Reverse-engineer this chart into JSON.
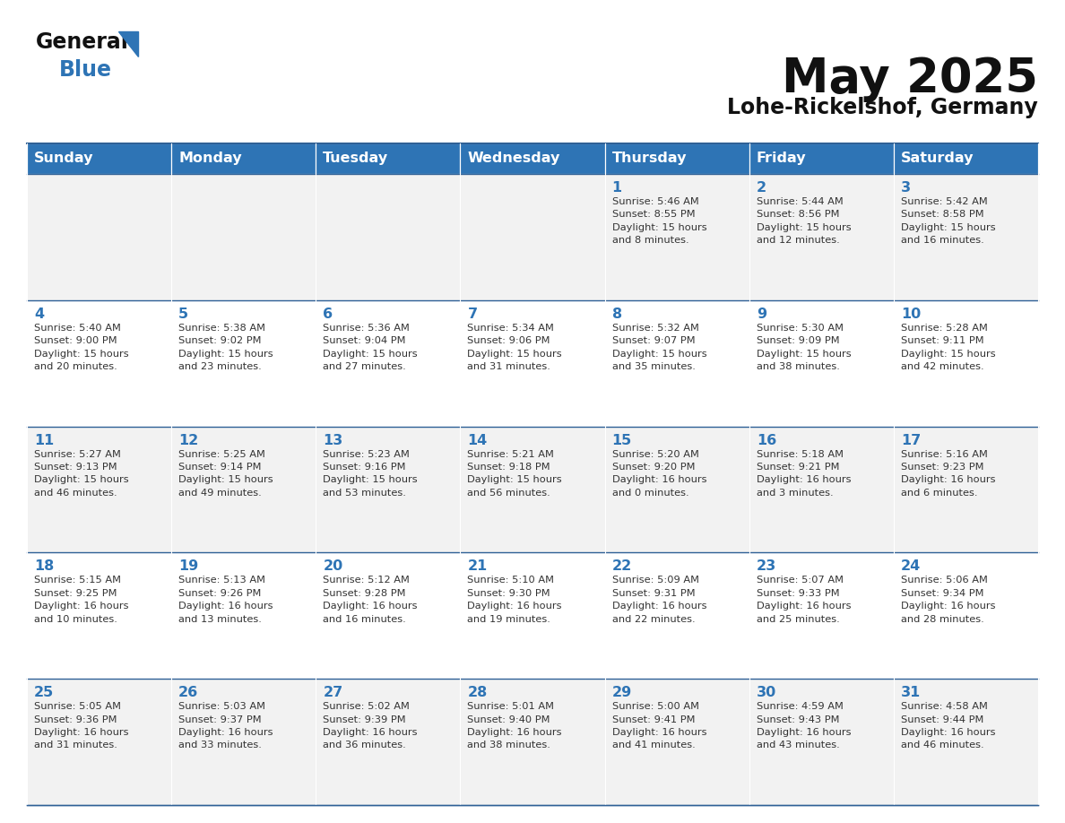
{
  "title": "May 2025",
  "subtitle": "Lohe-Rickelshof, Germany",
  "header_color": "#2E74B5",
  "header_text_color": "#FFFFFF",
  "background_color": "#FFFFFF",
  "cell_bg_even": "#F2F2F2",
  "cell_bg_odd": "#FFFFFF",
  "border_color": "#2E6096",
  "day_number_color": "#2E74B5",
  "text_color": "#333333",
  "day_headers": [
    "Sunday",
    "Monday",
    "Tuesday",
    "Wednesday",
    "Thursday",
    "Friday",
    "Saturday"
  ],
  "weeks": [
    [
      {
        "day": "",
        "text": ""
      },
      {
        "day": "",
        "text": ""
      },
      {
        "day": "",
        "text": ""
      },
      {
        "day": "",
        "text": ""
      },
      {
        "day": "1",
        "text": "Sunrise: 5:46 AM\nSunset: 8:55 PM\nDaylight: 15 hours\nand 8 minutes."
      },
      {
        "day": "2",
        "text": "Sunrise: 5:44 AM\nSunset: 8:56 PM\nDaylight: 15 hours\nand 12 minutes."
      },
      {
        "day": "3",
        "text": "Sunrise: 5:42 AM\nSunset: 8:58 PM\nDaylight: 15 hours\nand 16 minutes."
      }
    ],
    [
      {
        "day": "4",
        "text": "Sunrise: 5:40 AM\nSunset: 9:00 PM\nDaylight: 15 hours\nand 20 minutes."
      },
      {
        "day": "5",
        "text": "Sunrise: 5:38 AM\nSunset: 9:02 PM\nDaylight: 15 hours\nand 23 minutes."
      },
      {
        "day": "6",
        "text": "Sunrise: 5:36 AM\nSunset: 9:04 PM\nDaylight: 15 hours\nand 27 minutes."
      },
      {
        "day": "7",
        "text": "Sunrise: 5:34 AM\nSunset: 9:06 PM\nDaylight: 15 hours\nand 31 minutes."
      },
      {
        "day": "8",
        "text": "Sunrise: 5:32 AM\nSunset: 9:07 PM\nDaylight: 15 hours\nand 35 minutes."
      },
      {
        "day": "9",
        "text": "Sunrise: 5:30 AM\nSunset: 9:09 PM\nDaylight: 15 hours\nand 38 minutes."
      },
      {
        "day": "10",
        "text": "Sunrise: 5:28 AM\nSunset: 9:11 PM\nDaylight: 15 hours\nand 42 minutes."
      }
    ],
    [
      {
        "day": "11",
        "text": "Sunrise: 5:27 AM\nSunset: 9:13 PM\nDaylight: 15 hours\nand 46 minutes."
      },
      {
        "day": "12",
        "text": "Sunrise: 5:25 AM\nSunset: 9:14 PM\nDaylight: 15 hours\nand 49 minutes."
      },
      {
        "day": "13",
        "text": "Sunrise: 5:23 AM\nSunset: 9:16 PM\nDaylight: 15 hours\nand 53 minutes."
      },
      {
        "day": "14",
        "text": "Sunrise: 5:21 AM\nSunset: 9:18 PM\nDaylight: 15 hours\nand 56 minutes."
      },
      {
        "day": "15",
        "text": "Sunrise: 5:20 AM\nSunset: 9:20 PM\nDaylight: 16 hours\nand 0 minutes."
      },
      {
        "day": "16",
        "text": "Sunrise: 5:18 AM\nSunset: 9:21 PM\nDaylight: 16 hours\nand 3 minutes."
      },
      {
        "day": "17",
        "text": "Sunrise: 5:16 AM\nSunset: 9:23 PM\nDaylight: 16 hours\nand 6 minutes."
      }
    ],
    [
      {
        "day": "18",
        "text": "Sunrise: 5:15 AM\nSunset: 9:25 PM\nDaylight: 16 hours\nand 10 minutes."
      },
      {
        "day": "19",
        "text": "Sunrise: 5:13 AM\nSunset: 9:26 PM\nDaylight: 16 hours\nand 13 minutes."
      },
      {
        "day": "20",
        "text": "Sunrise: 5:12 AM\nSunset: 9:28 PM\nDaylight: 16 hours\nand 16 minutes."
      },
      {
        "day": "21",
        "text": "Sunrise: 5:10 AM\nSunset: 9:30 PM\nDaylight: 16 hours\nand 19 minutes."
      },
      {
        "day": "22",
        "text": "Sunrise: 5:09 AM\nSunset: 9:31 PM\nDaylight: 16 hours\nand 22 minutes."
      },
      {
        "day": "23",
        "text": "Sunrise: 5:07 AM\nSunset: 9:33 PM\nDaylight: 16 hours\nand 25 minutes."
      },
      {
        "day": "24",
        "text": "Sunrise: 5:06 AM\nSunset: 9:34 PM\nDaylight: 16 hours\nand 28 minutes."
      }
    ],
    [
      {
        "day": "25",
        "text": "Sunrise: 5:05 AM\nSunset: 9:36 PM\nDaylight: 16 hours\nand 31 minutes."
      },
      {
        "day": "26",
        "text": "Sunrise: 5:03 AM\nSunset: 9:37 PM\nDaylight: 16 hours\nand 33 minutes."
      },
      {
        "day": "27",
        "text": "Sunrise: 5:02 AM\nSunset: 9:39 PM\nDaylight: 16 hours\nand 36 minutes."
      },
      {
        "day": "28",
        "text": "Sunrise: 5:01 AM\nSunset: 9:40 PM\nDaylight: 16 hours\nand 38 minutes."
      },
      {
        "day": "29",
        "text": "Sunrise: 5:00 AM\nSunset: 9:41 PM\nDaylight: 16 hours\nand 41 minutes."
      },
      {
        "day": "30",
        "text": "Sunrise: 4:59 AM\nSunset: 9:43 PM\nDaylight: 16 hours\nand 43 minutes."
      },
      {
        "day": "31",
        "text": "Sunrise: 4:58 AM\nSunset: 9:44 PM\nDaylight: 16 hours\nand 46 minutes."
      }
    ]
  ]
}
